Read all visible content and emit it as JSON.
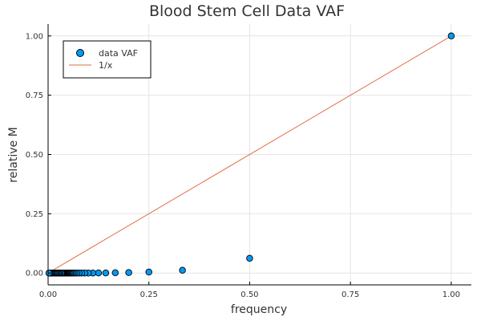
{
  "chart_data": {
    "type": "scatter",
    "title": "Blood Stem Cell Data VAF",
    "xlabel": "frequency",
    "ylabel": "relative M",
    "xlim": [
      0,
      1.05
    ],
    "ylim": [
      -0.05,
      1.05
    ],
    "xticks": [
      0,
      0.25,
      0.5,
      0.75,
      1.0
    ],
    "xtick_labels": [
      "0.00",
      "0.25",
      "0.50",
      "0.75",
      "1.00"
    ],
    "yticks": [
      0,
      0.25,
      0.5,
      0.75,
      1.0
    ],
    "ytick_labels": [
      "0.00",
      "0.25",
      "0.50",
      "0.75",
      "1.00"
    ],
    "grid": true,
    "legend_position": "top-left",
    "colors": {
      "scatter": "#009af9",
      "line": "#e26f46"
    },
    "series": [
      {
        "name": "data VAF",
        "type": "scatter",
        "x": [
          1.0,
          0.5,
          0.3333,
          0.25,
          0.2,
          0.1667,
          0.1429,
          0.125,
          0.1111,
          0.1,
          0.0909,
          0.0833,
          0.0769,
          0.0714,
          0.0667,
          0.0625,
          0.0588,
          0.0556,
          0.0526,
          0.05,
          0.0476,
          0.0455,
          0.0435,
          0.0417,
          0.04,
          0.0385,
          0.037,
          0.0357,
          0.0345,
          0.0333,
          0.03,
          0.0275,
          0.025,
          0.0225,
          0.02,
          0.0175,
          0.015,
          0.0125,
          0.01,
          0.008,
          0.006,
          0.004,
          0.002
        ],
        "y": [
          1.0,
          0.062,
          0.012,
          0.004,
          0.002,
          0.001,
          0.0005,
          0.0003,
          0.0002,
          0.0001,
          0.0001,
          0.0001,
          0,
          0,
          0,
          0,
          0,
          0,
          0,
          0,
          0,
          0,
          0,
          0,
          0,
          0,
          0,
          0,
          0,
          0,
          0,
          0,
          0,
          0,
          0,
          0,
          0,
          0,
          0,
          0,
          0,
          0,
          0
        ]
      },
      {
        "name": "1/x",
        "type": "line",
        "x": [
          0,
          1.0
        ],
        "y": [
          0,
          1.0
        ]
      }
    ]
  }
}
